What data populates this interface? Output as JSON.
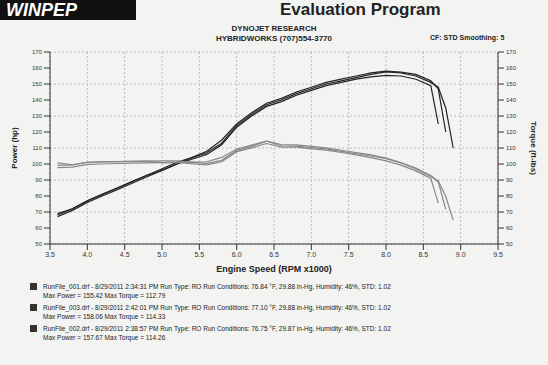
{
  "chart_data": {
    "type": "line",
    "header": "WINPEP",
    "program": "Evaluation Program",
    "title": "DYNOJET RESEARCH",
    "subtitle": "HYBRIDWORKS (707)554-3770",
    "corner_note": "CF: STD  Smoothing: 5",
    "xlabel": "Engine Speed (RPM x1000)",
    "ylabel": "Power (hp)",
    "y2label": "Torque (ft-lbs)",
    "x": [
      3.6,
      3.8,
      4.0,
      4.2,
      4.4,
      4.6,
      4.8,
      5.0,
      5.2,
      5.4,
      5.6,
      5.8,
      6.0,
      6.2,
      6.4,
      6.6,
      6.8,
      7.0,
      7.2,
      7.4,
      7.6,
      7.8,
      8.0,
      8.2,
      8.4,
      8.6,
      8.7,
      8.8,
      8.9
    ],
    "series": [
      {
        "color": "#222222",
        "values": [
          68,
          72,
          77,
          81,
          85,
          89,
          93,
          96,
          100,
          103,
          106,
          112,
          123,
          130,
          136,
          139,
          143,
          146,
          149,
          151,
          153,
          154.5,
          155.4,
          155,
          153,
          149,
          125,
          null,
          null
        ]
      },
      {
        "color": "#222222",
        "values": [
          67,
          71,
          76,
          80,
          84,
          88,
          92,
          96,
          100,
          104,
          108,
          115,
          125,
          132,
          138,
          141,
          145,
          148,
          151,
          153,
          155,
          157,
          158,
          157.5,
          156,
          152,
          147,
          120,
          null
        ]
      },
      {
        "color": "#222222",
        "values": [
          69,
          72,
          77,
          81,
          85,
          89,
          93,
          97,
          101,
          104,
          107,
          113,
          124,
          131,
          137,
          140,
          144,
          147,
          150,
          152,
          154,
          156,
          157.6,
          157,
          155,
          151,
          148,
          135,
          110
        ]
      },
      {
        "color": "#888888",
        "axis": "y2",
        "values": [
          99.2,
          99.5,
          101.1,
          101.3,
          101.5,
          101.6,
          101.8,
          100.8,
          101.0,
          100.2,
          99.4,
          101.4,
          107.7,
          110.1,
          112.8,
          110.6,
          110.5,
          109.5,
          108.7,
          107.2,
          105.7,
          104.0,
          102.0,
          99.3,
          95.7,
          91.0,
          75.5,
          null,
          null
        ]
      },
      {
        "color": "#888888",
        "axis": "y2",
        "values": [
          97.7,
          98.1,
          99.8,
          100.0,
          100.3,
          100.5,
          100.7,
          100.8,
          101.0,
          101.2,
          101.4,
          104.1,
          109.4,
          111.8,
          114.3,
          112.2,
          112.0,
          111.0,
          110.1,
          108.6,
          107.1,
          105.7,
          103.7,
          100.9,
          97.5,
          92.8,
          88.8,
          71.6,
          null
        ]
      },
      {
        "color": "#888888",
        "axis": "y2",
        "values": [
          100.7,
          99.5,
          101.1,
          101.3,
          101.5,
          101.6,
          101.8,
          101.9,
          102.0,
          101.2,
          100.4,
          102.3,
          108.5,
          111.0,
          114.3,
          111.4,
          111.2,
          110.3,
          109.4,
          107.9,
          106.4,
          105.0,
          103.4,
          100.6,
          96.9,
          92.2,
          89.4,
          79.7,
          64.9
        ]
      }
    ],
    "xlim": [
      3.5,
      9.5
    ],
    "xticks": [
      3.5,
      {
        "value": 4,
        "label": "4.0"
      },
      4.5,
      {
        "value": 5,
        "label": "5.0"
      },
      5.5,
      {
        "value": 6,
        "label": "6.0"
      },
      6.5,
      {
        "value": 7,
        "label": "7.0"
      },
      7.5,
      {
        "value": 8,
        "label": "8.0"
      },
      8.5,
      {
        "value": 9,
        "label": "9.0"
      },
      9.5
    ],
    "ylim": [
      50,
      170
    ],
    "yticks": [
      50,
      60,
      70,
      80,
      90,
      100,
      110,
      120,
      130,
      140,
      150,
      160,
      170
    ],
    "y2lim": [
      50,
      170
    ],
    "y2ticks": [
      50,
      60,
      70,
      80,
      90,
      100,
      110,
      120,
      130,
      140,
      150,
      160,
      170
    ],
    "grid": true,
    "annotations": [
      "RunFile_001.drf - 8/29/2011 2:34:31 PM  Run Type: RO  Run Conditions: 76.84 °F, 29.88 in-Hg,  Humidity: 46%,  STD: 1.02",
      "Max Power = 155.42  Max Torque = 112.79",
      "RunFile_003.drf - 8/29/2011 2:42:01 PM  Run Type: RO  Run Conditions: 77.10 °F, 29.88 in-Hg,  Humidity: 46%,  STD: 1.02",
      "Max Power = 158.06  Max Torque = 114.33",
      "RunFile_002.drf - 8/29/2011 2:38:57 PM  Run Type: RO  Run Conditions: 76.75 °F, 29.87 in-Hg,  Humidity: 46%,  STD: 1.02",
      "Max Power = 157.67  Max Torque = 114.26"
    ]
  }
}
